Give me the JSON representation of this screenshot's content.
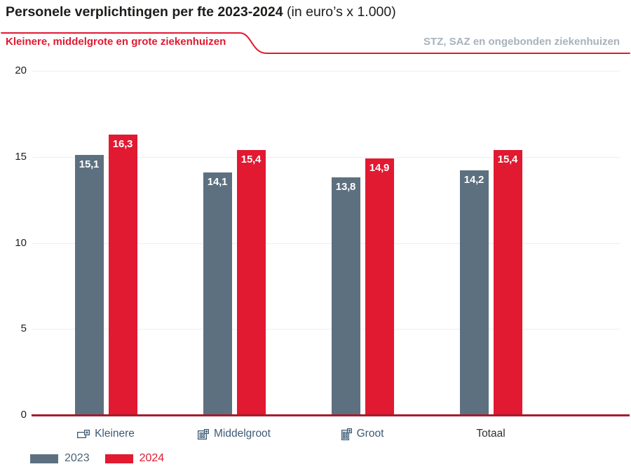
{
  "title": {
    "main": "Personele verplichtingen per fte 2023-2024",
    "suffix": "(in euro’s x 1.000)"
  },
  "tabs": {
    "active": "Kleinere, middelgrote en grote ziekenhuizen",
    "inactive": "STZ, SAZ en ongebonden ziekenhuizen"
  },
  "chart_data": {
    "type": "bar",
    "categories": [
      "Kleinere",
      "Middelgroot",
      "Groot",
      "Totaal"
    ],
    "category_icons": [
      "small-hospital-icon",
      "medium-hospital-icon",
      "large-hospital-icon",
      null
    ],
    "category_colors": [
      "#3d5a74",
      "#3d5a74",
      "#3d5a74",
      "#2f2f2f"
    ],
    "series": [
      {
        "name": "2023",
        "color": "#5d7080",
        "label_color": "#4a6478",
        "values": [
          15.1,
          14.1,
          13.8,
          14.2
        ],
        "labels": [
          "15,1",
          "14,1",
          "13,8",
          "14,2"
        ]
      },
      {
        "name": "2024",
        "color": "#e11931",
        "label_color": "#e11931",
        "values": [
          16.3,
          15.4,
          14.9,
          15.4
        ],
        "labels": [
          "16,3",
          "15,4",
          "14,9",
          "15,4"
        ]
      }
    ],
    "ylim": [
      0,
      20
    ],
    "yticks": [
      0,
      5,
      10,
      15,
      20
    ],
    "grid": true,
    "legend_position": "bottom-left"
  },
  "colors": {
    "accent_red": "#e11931",
    "axis_red": "#a51c30",
    "bar_gray": "#5d7080",
    "grid": "#eeeeee",
    "category_blue": "#3d5a74",
    "total_dark": "#2f2f2f",
    "inactive_tab": "#a7b2bc",
    "text_dark": "#1d1d1b"
  }
}
